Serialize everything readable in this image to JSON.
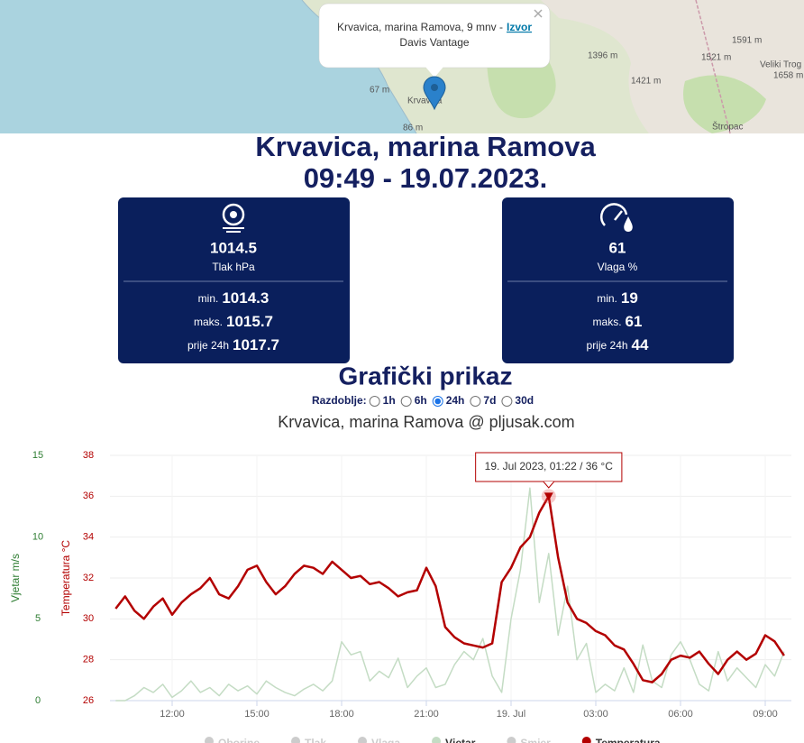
{
  "map": {
    "popup": {
      "text": "Krvavica, marina Ramova, 9 mnv -",
      "link": "Izvor",
      "line2": "Davis Vantage"
    },
    "labels": [
      "1396 m",
      "1421 m",
      "1521 m",
      "1591 m",
      "Veliki Trog",
      "1658 m",
      "67 m",
      "Krvavica",
      "86 m",
      "Štropac"
    ]
  },
  "header": {
    "title": "Krvavica, marina Ramova",
    "datetime": "09:49 - 19.07.2023."
  },
  "cards": [
    {
      "value": 1014.5,
      "label": "Tlak hPa",
      "rows": [
        {
          "name": "min.",
          "value": 1014.3
        },
        {
          "name": "maks.",
          "value": 1015.7
        },
        {
          "name": "prije 24h",
          "value": 1017.7
        }
      ]
    },
    {
      "value": 61,
      "label": "Vlaga %",
      "rows": [
        {
          "name": "min.",
          "value": 19
        },
        {
          "name": "maks.",
          "value": 61
        },
        {
          "name": "prije 24h",
          "value": 44
        }
      ]
    }
  ],
  "graph": {
    "heading": "Grafički prikaz",
    "period_label": "Razdoblje:",
    "periods": [
      "1h",
      "6h",
      "24h",
      "7d",
      "30d"
    ],
    "selected": "24h"
  },
  "chart_data": {
    "type": "line",
    "title": "Krvavica, marina Ramova @ pljusak.com",
    "x": [
      "10:00",
      "10:20",
      "10:40",
      "11:00",
      "11:20",
      "11:40",
      "12:00",
      "12:20",
      "12:40",
      "13:00",
      "13:20",
      "13:40",
      "14:00",
      "14:20",
      "14:40",
      "15:00",
      "15:20",
      "15:40",
      "16:00",
      "16:20",
      "16:40",
      "17:00",
      "17:20",
      "17:40",
      "18:00",
      "18:20",
      "18:40",
      "19:00",
      "19:20",
      "19:40",
      "20:00",
      "20:20",
      "20:40",
      "21:00",
      "21:20",
      "21:40",
      "22:00",
      "22:20",
      "22:40",
      "23:00",
      "23:20",
      "23:40",
      "00:00",
      "00:20",
      "00:40",
      "01:00",
      "01:20",
      "01:40",
      "02:00",
      "02:20",
      "02:40",
      "03:00",
      "03:20",
      "03:40",
      "04:00",
      "04:20",
      "04:40",
      "05:00",
      "05:20",
      "05:40",
      "06:00",
      "06:20",
      "06:40",
      "07:00",
      "07:20",
      "07:40",
      "08:00",
      "08:20",
      "08:40",
      "09:00",
      "09:20",
      "09:40"
    ],
    "xticks": [
      "12:00",
      "15:00",
      "18:00",
      "21:00",
      {
        "value": "00:00",
        "label": "19. Jul"
      },
      "03:00",
      "06:00",
      "09:00"
    ],
    "series": [
      {
        "name": "Oborine",
        "color": "#cccccc",
        "visible": false
      },
      {
        "name": "Tlak",
        "color": "#cccccc",
        "visible": false
      },
      {
        "name": "Vlaga",
        "color": "#cccccc",
        "visible": false
      },
      {
        "name": "Vjetar",
        "color": "#c4dcc4",
        "axis": "y2",
        "visible": true,
        "values": [
          0,
          0,
          0.3,
          0.8,
          0.5,
          1.0,
          0.2,
          0.6,
          1.2,
          0.5,
          0.8,
          0.3,
          1.0,
          0.6,
          0.9,
          0.4,
          1.2,
          0.8,
          0.5,
          0.3,
          0.7,
          1.0,
          0.6,
          1.2,
          3.6,
          2.8,
          3.0,
          1.2,
          1.8,
          1.4,
          2.6,
          0.8,
          1.5,
          2.0,
          0.8,
          1.0,
          2.2,
          3.0,
          2.5,
          3.8,
          1.5,
          0.5,
          5.0,
          8.0,
          13.0,
          6.0,
          9.0,
          4.0,
          7.0,
          2.5,
          3.5,
          0.5,
          1.0,
          0.6,
          2.0,
          0.5,
          3.4,
          1.2,
          0.8,
          2.8,
          3.6,
          2.5,
          1.0,
          0.6,
          3.0,
          1.2,
          2.0,
          1.4,
          0.8,
          2.2,
          1.5,
          3.0
        ]
      },
      {
        "name": "Smjer",
        "color": "#cccccc",
        "visible": false
      },
      {
        "name": "Temperatura",
        "color": "#b30000",
        "visible": true,
        "values": [
          30.5,
          31.1,
          30.4,
          30.0,
          30.6,
          31.0,
          30.2,
          30.8,
          31.2,
          31.5,
          32.0,
          31.2,
          31.0,
          31.6,
          32.4,
          32.6,
          31.8,
          31.2,
          31.6,
          32.2,
          32.6,
          32.5,
          32.2,
          32.8,
          32.4,
          32.0,
          32.1,
          31.7,
          31.8,
          31.5,
          31.1,
          31.3,
          31.4,
          32.5,
          31.6,
          29.6,
          29.1,
          28.8,
          28.7,
          28.6,
          28.8,
          31.8,
          32.5,
          33.5,
          34.0,
          35.2,
          36.0,
          33.0,
          30.8,
          30.0,
          29.8,
          29.4,
          29.2,
          28.7,
          28.5,
          27.8,
          27.0,
          26.9,
          27.3,
          28.0,
          28.2,
          28.1,
          28.4,
          27.8,
          27.3,
          28.0,
          28.4,
          28.0,
          28.3,
          29.2,
          28.9,
          28.2
        ]
      }
    ],
    "ylim": [
      26,
      38
    ],
    "yticks": [
      26,
      28,
      30,
      32,
      34,
      36,
      38
    ],
    "ylabel": "Temperatura °C",
    "ylabel_color": "#b30000",
    "y2lim": [
      0,
      15
    ],
    "y2ticks": [
      0,
      5,
      10,
      15
    ],
    "y2label": "Vjetar m/s",
    "y2label_color": "#2e7d32",
    "grid": true,
    "annotation": "19. Jul 2023, 01:22 / 36 °C"
  }
}
